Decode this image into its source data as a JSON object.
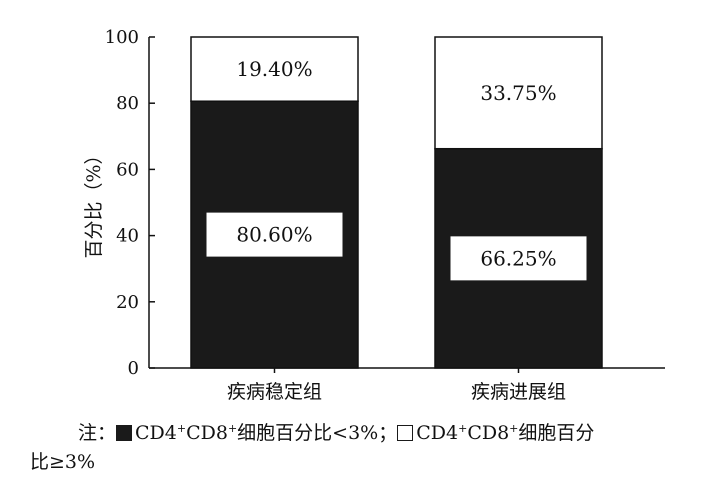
{
  "chart_data": {
    "type": "bar",
    "stacked": true,
    "ylabel": "百分比（%）",
    "ylim": [
      0,
      100
    ],
    "yticks": [
      "0",
      "20",
      "40",
      "60",
      "80",
      "100"
    ],
    "categories": [
      "疾病稳定组",
      "疾病进展组"
    ],
    "series": [
      {
        "name": "CD4+CD8+细胞百分比<3%",
        "color": "#1a1a1a",
        "values": [
          80.6,
          66.25
        ],
        "labels": [
          "80.60%",
          "66.25%"
        ]
      },
      {
        "name": "CD4+CD8+细胞百分比≥3%",
        "color": "#ffffff",
        "values": [
          19.4,
          33.75
        ],
        "labels": [
          "19.40%",
          "33.75%"
        ]
      }
    ],
    "grid": false
  },
  "note": {
    "prefix": "注：",
    "legend1": {
      "p1": "CD4",
      "s1": "+",
      "p2": "CD8",
      "s2": "+",
      "p3": "细胞百分比<3%；"
    },
    "legend2": {
      "p1": "CD4",
      "s1": "+",
      "p2": "CD8",
      "s2": "+",
      "p3": "细胞百分"
    },
    "line2": "比≥3%"
  }
}
